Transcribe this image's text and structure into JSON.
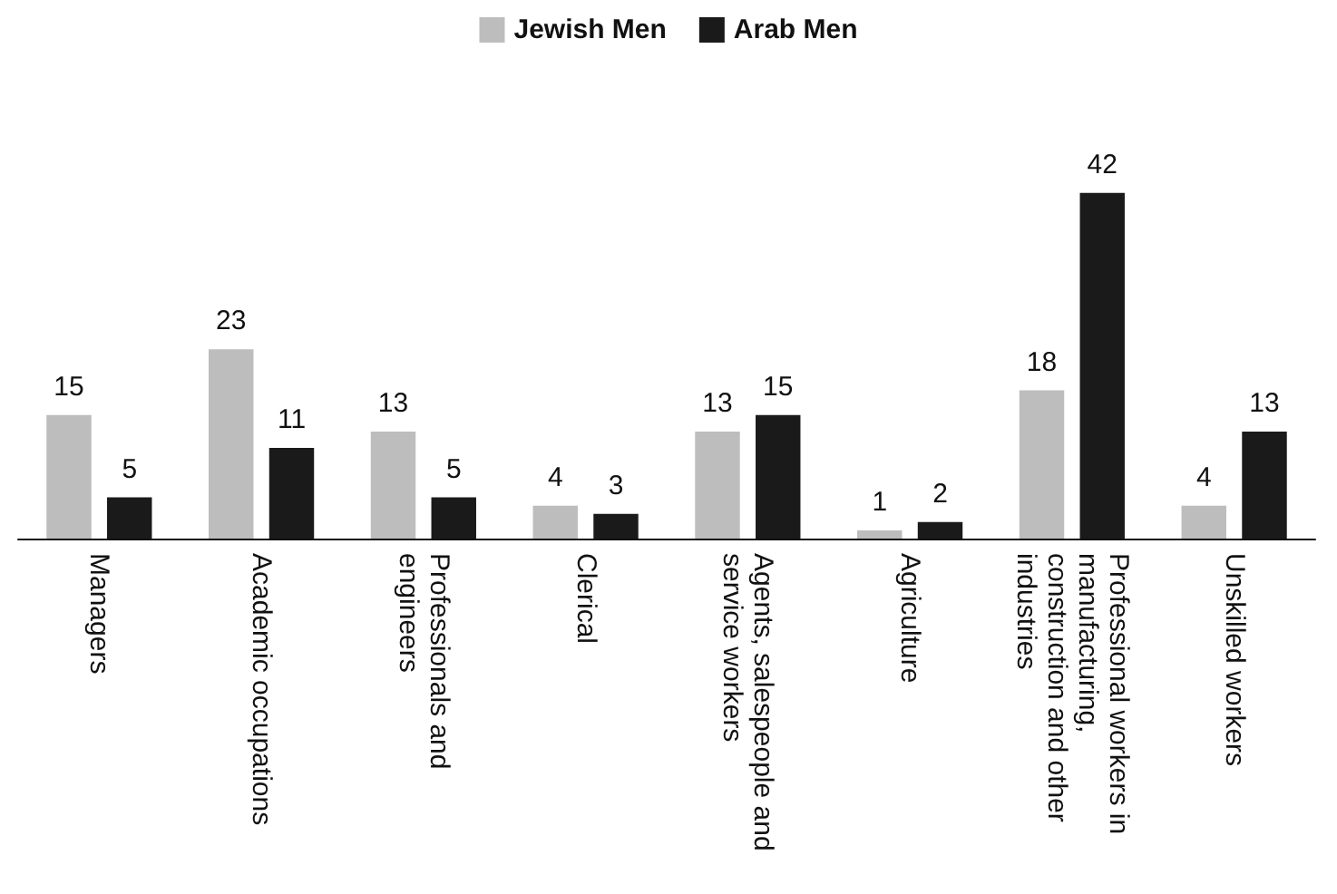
{
  "chart_data": {
    "type": "bar",
    "categories": [
      "Managers",
      "Academic occupations",
      "Professionals and engineers",
      "Clerical",
      "Agents, salespeople and service workers",
      "Agriculture",
      "Professional workers in manufacturing, construction and other industries",
      "Unskilled workers"
    ],
    "series": [
      {
        "name": "Jewish Men",
        "color": "#bdbdbd",
        "values": [
          15,
          23,
          13,
          4,
          13,
          1,
          18,
          4
        ]
      },
      {
        "name": "Arab Men",
        "color": "#1a1a1a",
        "values": [
          5,
          11,
          5,
          3,
          15,
          2,
          42,
          13
        ]
      }
    ],
    "data_labels": true,
    "legend": "top"
  }
}
